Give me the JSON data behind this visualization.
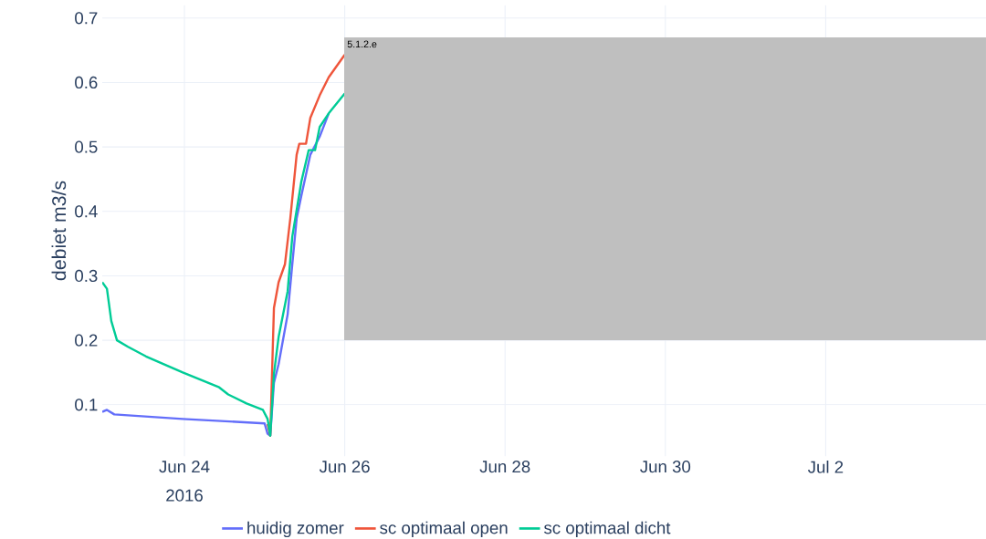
{
  "chart_data": {
    "type": "line",
    "ylabel": "debiet m3/s",
    "annotations": [
      "5.1.2.e",
      "2016"
    ],
    "xlim": [
      "2016-06-22T23:24",
      "2016-07-04T00:00"
    ],
    "ylim": [
      0.02,
      0.72
    ],
    "xticks": [
      {
        "value": "2016-06-24",
        "label": "Jun 24"
      },
      {
        "value": "2016-06-26",
        "label": "Jun 26"
      },
      {
        "value": "2016-06-28",
        "label": "Jun 28"
      },
      {
        "value": "2016-06-30",
        "label": "Jun 30"
      },
      {
        "value": "2016-07-02",
        "label": "Jul 2"
      }
    ],
    "yticks": [
      0.1,
      0.2,
      0.3,
      0.4,
      0.5,
      0.6,
      0.7
    ],
    "grid": true,
    "legend": "bottom",
    "marker": "none",
    "line_style": "solid",
    "series": [
      {
        "name": "huidig zomer",
        "color": "#636efa",
        "x": [
          "2016-06-22T23:24",
          "2016-06-23T00:48",
          "2016-06-23T03:00",
          "2016-06-23T23:30",
          "2016-06-25T00:00",
          "2016-06-25T00:54",
          "2016-06-25T01:42",
          "2016-06-25T02:48",
          "2016-06-25T04:12",
          "2016-06-25T06:54",
          "2016-06-25T08:18",
          "2016-06-25T09:36",
          "2016-06-25T11:00",
          "2016-06-25T13:42",
          "2016-06-25T16:30",
          "2016-06-25T19:12"
        ],
        "values": [
          0.089,
          0.092,
          0.085,
          0.078,
          0.071,
          0.055,
          0.052,
          0.134,
          0.163,
          0.24,
          0.318,
          0.389,
          0.424,
          0.488,
          0.516,
          0.552
        ]
      },
      {
        "name": "sc optimaal open",
        "color": "#ef553b",
        "x": [
          "2016-06-25T00:54",
          "2016-06-25T01:42",
          "2016-06-25T02:48",
          "2016-06-25T04:12",
          "2016-06-25T06:06",
          "2016-06-25T07:42",
          "2016-06-25T09:36",
          "2016-06-25T10:24",
          "2016-06-25T12:24",
          "2016-06-25T13:42",
          "2016-06-25T16:30",
          "2016-06-25T19:12",
          "2016-06-26T00:00"
        ],
        "values": [
          0.07,
          0.052,
          0.25,
          0.29,
          0.318,
          0.389,
          0.488,
          0.505,
          0.505,
          0.545,
          0.58,
          0.608,
          0.643
        ]
      },
      {
        "name": "sc optimaal dicht",
        "color": "#00cc96",
        "x": [
          "2016-06-22T23:24",
          "2016-06-23T00:48",
          "2016-06-23T02:06",
          "2016-06-23T03:48",
          "2016-06-23T07:06",
          "2016-06-23T12:30",
          "2016-06-23T23:30",
          "2016-06-24T10:24",
          "2016-06-24T13:06",
          "2016-06-24T18:36",
          "2016-06-24T23:30",
          "2016-06-25T00:54",
          "2016-06-25T01:42",
          "2016-06-25T02:48",
          "2016-06-25T04:12",
          "2016-06-25T06:54",
          "2016-06-25T08:18",
          "2016-06-25T11:00",
          "2016-06-25T13:12",
          "2016-06-25T15:06",
          "2016-06-25T16:30",
          "2016-06-25T19:12",
          "2016-06-26T00:00"
        ],
        "values": [
          0.29,
          0.28,
          0.23,
          0.2,
          0.19,
          0.175,
          0.15,
          0.127,
          0.116,
          0.102,
          0.092,
          0.078,
          0.052,
          0.148,
          0.205,
          0.276,
          0.361,
          0.446,
          0.495,
          0.495,
          0.531,
          0.552,
          0.583
        ]
      }
    ]
  }
}
